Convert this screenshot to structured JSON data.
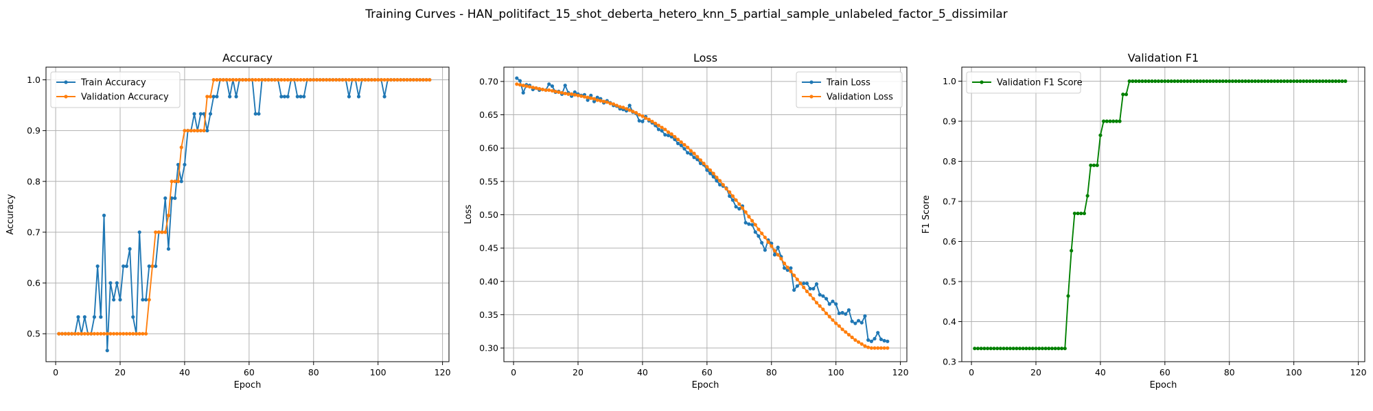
{
  "suptitle": "Training Curves - HAN_politifact_15_shot_deberta_hetero_knn_5_partial_sample_unlabeled_factor_5_dissimilar",
  "colors": {
    "train": "#1f77b4",
    "validation": "#ff7f0e",
    "f1": "#008000",
    "grid": "#b0b0b0",
    "frame": "#000000"
  },
  "chart_data": [
    {
      "type": "line",
      "title": "Accuracy",
      "xlabel": "Epoch",
      "ylabel": "Accuracy",
      "xlim": [
        -3,
        122
      ],
      "ylim": [
        0.445,
        1.025
      ],
      "xticks": [
        0,
        20,
        40,
        60,
        80,
        100,
        120
      ],
      "yticks": [
        0.5,
        0.6,
        0.7,
        0.8,
        0.9,
        1.0
      ],
      "ytick_labels": [
        "0.5",
        "0.6",
        "0.7",
        "0.8",
        "0.9",
        "1.0"
      ],
      "grid": true,
      "legend_position": "upper-left",
      "x_start": 1,
      "series": [
        {
          "name": "Train Accuracy",
          "color": "#1f77b4",
          "values": [
            0.5,
            0.5,
            0.5,
            0.5,
            0.5,
            0.5,
            0.533,
            0.5,
            0.533,
            0.5,
            0.5,
            0.533,
            0.633,
            0.533,
            0.733,
            0.467,
            0.6,
            0.567,
            0.6,
            0.567,
            0.633,
            0.633,
            0.667,
            0.533,
            0.5,
            0.7,
            0.567,
            0.567,
            0.633,
            0.633,
            0.633,
            0.7,
            0.7,
            0.767,
            0.667,
            0.767,
            0.767,
            0.833,
            0.8,
            0.833,
            0.9,
            0.9,
            0.933,
            0.9,
            0.933,
            0.933,
            0.9,
            0.933,
            0.967,
            0.967,
            1.0,
            1.0,
            1.0,
            0.967,
            1.0,
            0.967,
            1.0,
            1.0,
            1.0,
            1.0,
            1.0,
            0.933,
            0.933,
            1.0,
            1.0,
            1.0,
            1.0,
            1.0,
            1.0,
            0.967,
            0.967,
            0.967,
            1.0,
            1.0,
            0.967,
            0.967,
            0.967,
            1.0,
            1.0,
            1.0,
            1.0,
            1.0,
            1.0,
            1.0,
            1.0,
            1.0,
            1.0,
            1.0,
            1.0,
            1.0,
            0.967,
            1.0,
            1.0,
            0.967,
            1.0,
            1.0,
            1.0,
            1.0,
            1.0,
            1.0,
            1.0,
            0.967,
            1.0,
            1.0,
            1.0,
            1.0,
            1.0,
            1.0,
            1.0,
            1.0,
            1.0,
            1.0,
            1.0,
            1.0,
            1.0,
            1.0
          ]
        },
        {
          "name": "Validation Accuracy",
          "color": "#ff7f0e",
          "values": [
            0.5,
            0.5,
            0.5,
            0.5,
            0.5,
            0.5,
            0.5,
            0.5,
            0.5,
            0.5,
            0.5,
            0.5,
            0.5,
            0.5,
            0.5,
            0.5,
            0.5,
            0.5,
            0.5,
            0.5,
            0.5,
            0.5,
            0.5,
            0.5,
            0.5,
            0.5,
            0.5,
            0.5,
            0.567,
            0.633,
            0.7,
            0.7,
            0.7,
            0.7,
            0.733,
            0.8,
            0.8,
            0.8,
            0.867,
            0.9,
            0.9,
            0.9,
            0.9,
            0.9,
            0.9,
            0.9,
            0.967,
            0.967,
            1.0,
            1.0,
            1.0,
            1.0,
            1.0,
            1.0,
            1.0,
            1.0,
            1.0,
            1.0,
            1.0,
            1.0,
            1.0,
            1.0,
            1.0,
            1.0,
            1.0,
            1.0,
            1.0,
            1.0,
            1.0,
            1.0,
            1.0,
            1.0,
            1.0,
            1.0,
            1.0,
            1.0,
            1.0,
            1.0,
            1.0,
            1.0,
            1.0,
            1.0,
            1.0,
            1.0,
            1.0,
            1.0,
            1.0,
            1.0,
            1.0,
            1.0,
            1.0,
            1.0,
            1.0,
            1.0,
            1.0,
            1.0,
            1.0,
            1.0,
            1.0,
            1.0,
            1.0,
            1.0,
            1.0,
            1.0,
            1.0,
            1.0,
            1.0,
            1.0,
            1.0,
            1.0,
            1.0,
            1.0,
            1.0,
            1.0,
            1.0,
            1.0
          ]
        }
      ]
    },
    {
      "type": "line",
      "title": "Loss",
      "xlabel": "Epoch",
      "ylabel": "Loss",
      "xlim": [
        -3,
        122
      ],
      "ylim": [
        0.2795,
        0.7215
      ],
      "xticks": [
        0,
        20,
        40,
        60,
        80,
        100,
        120
      ],
      "yticks": [
        0.3,
        0.35,
        0.4,
        0.45,
        0.5,
        0.55,
        0.6,
        0.65,
        0.7
      ],
      "ytick_labels": [
        "0.30",
        "0.35",
        "0.40",
        "0.45",
        "0.50",
        "0.55",
        "0.60",
        "0.65",
        "0.70"
      ],
      "grid": true,
      "legend_position": "upper-right",
      "x_start": 1,
      "series": [
        {
          "name": "Train Loss",
          "color": "#1f77b4",
          "values": [
            0.705,
            0.701,
            0.683,
            0.695,
            0.694,
            0.688,
            0.69,
            0.687,
            0.688,
            0.687,
            0.696,
            0.693,
            0.684,
            0.685,
            0.681,
            0.694,
            0.683,
            0.678,
            0.684,
            0.681,
            0.679,
            0.68,
            0.672,
            0.679,
            0.67,
            0.676,
            0.674,
            0.668,
            0.671,
            0.668,
            0.664,
            0.663,
            0.659,
            0.658,
            0.656,
            0.664,
            0.654,
            0.652,
            0.641,
            0.64,
            0.647,
            0.641,
            0.638,
            0.634,
            0.628,
            0.626,
            0.62,
            0.619,
            0.617,
            0.613,
            0.607,
            0.604,
            0.599,
            0.593,
            0.591,
            0.586,
            0.583,
            0.577,
            0.575,
            0.567,
            0.562,
            0.557,
            0.551,
            0.545,
            0.543,
            0.54,
            0.528,
            0.522,
            0.512,
            0.509,
            0.513,
            0.488,
            0.486,
            0.485,
            0.474,
            0.468,
            0.458,
            0.447,
            0.462,
            0.457,
            0.44,
            0.451,
            0.437,
            0.42,
            0.417,
            0.42,
            0.387,
            0.393,
            0.397,
            0.397,
            0.397,
            0.389,
            0.389,
            0.396,
            0.38,
            0.378,
            0.374,
            0.366,
            0.37,
            0.366,
            0.352,
            0.353,
            0.351,
            0.357,
            0.34,
            0.337,
            0.341,
            0.338,
            0.348,
            0.312,
            0.31,
            0.314,
            0.323,
            0.313,
            0.311,
            0.31
          ]
        },
        {
          "name": "Validation Loss",
          "color": "#ff7f0e",
          "values": [
            0.696,
            0.695,
            0.694,
            0.693,
            0.692,
            0.691,
            0.69,
            0.689,
            0.688,
            0.687,
            0.687,
            0.686,
            0.685,
            0.684,
            0.683,
            0.682,
            0.681,
            0.681,
            0.68,
            0.679,
            0.678,
            0.677,
            0.676,
            0.675,
            0.674,
            0.672,
            0.671,
            0.67,
            0.669,
            0.667,
            0.666,
            0.664,
            0.662,
            0.661,
            0.659,
            0.657,
            0.655,
            0.653,
            0.65,
            0.648,
            0.645,
            0.643,
            0.64,
            0.637,
            0.634,
            0.631,
            0.628,
            0.624,
            0.621,
            0.617,
            0.613,
            0.609,
            0.605,
            0.601,
            0.596,
            0.592,
            0.587,
            0.582,
            0.577,
            0.572,
            0.567,
            0.562,
            0.556,
            0.551,
            0.545,
            0.539,
            0.534,
            0.528,
            0.522,
            0.516,
            0.51,
            0.504,
            0.497,
            0.491,
            0.485,
            0.478,
            0.472,
            0.466,
            0.459,
            0.453,
            0.446,
            0.44,
            0.434,
            0.427,
            0.421,
            0.415,
            0.409,
            0.403,
            0.397,
            0.391,
            0.385,
            0.38,
            0.374,
            0.368,
            0.363,
            0.358,
            0.352,
            0.347,
            0.342,
            0.337,
            0.333,
            0.328,
            0.324,
            0.32,
            0.316,
            0.312,
            0.309,
            0.306,
            0.303,
            0.301,
            0.3,
            0.3,
            0.3,
            0.3,
            0.3,
            0.3
          ]
        }
      ]
    },
    {
      "type": "line",
      "title": "Validation F1",
      "xlabel": "Epoch",
      "ylabel": "F1 Score",
      "xlim": [
        -3,
        122
      ],
      "ylim": [
        0.3,
        1.035
      ],
      "xticks": [
        0,
        20,
        40,
        60,
        80,
        100,
        120
      ],
      "yticks": [
        0.3,
        0.4,
        0.5,
        0.6,
        0.7,
        0.8,
        0.9,
        1.0
      ],
      "ytick_labels": [
        "0.3",
        "0.4",
        "0.5",
        "0.6",
        "0.7",
        "0.8",
        "0.9",
        "1.0"
      ],
      "grid": true,
      "legend_position": "upper-left",
      "x_start": 1,
      "series": [
        {
          "name": "Validation F1 Score",
          "color": "#008000",
          "values": [
            0.333,
            0.333,
            0.333,
            0.333,
            0.333,
            0.333,
            0.333,
            0.333,
            0.333,
            0.333,
            0.333,
            0.333,
            0.333,
            0.333,
            0.333,
            0.333,
            0.333,
            0.333,
            0.333,
            0.333,
            0.333,
            0.333,
            0.333,
            0.333,
            0.333,
            0.333,
            0.333,
            0.333,
            0.333,
            0.464,
            0.577,
            0.67,
            0.67,
            0.67,
            0.67,
            0.714,
            0.79,
            0.79,
            0.79,
            0.865,
            0.9,
            0.9,
            0.9,
            0.9,
            0.9,
            0.9,
            0.967,
            0.967,
            1.0,
            1.0,
            1.0,
            1.0,
            1.0,
            1.0,
            1.0,
            1.0,
            1.0,
            1.0,
            1.0,
            1.0,
            1.0,
            1.0,
            1.0,
            1.0,
            1.0,
            1.0,
            1.0,
            1.0,
            1.0,
            1.0,
            1.0,
            1.0,
            1.0,
            1.0,
            1.0,
            1.0,
            1.0,
            1.0,
            1.0,
            1.0,
            1.0,
            1.0,
            1.0,
            1.0,
            1.0,
            1.0,
            1.0,
            1.0,
            1.0,
            1.0,
            1.0,
            1.0,
            1.0,
            1.0,
            1.0,
            1.0,
            1.0,
            1.0,
            1.0,
            1.0,
            1.0,
            1.0,
            1.0,
            1.0,
            1.0,
            1.0,
            1.0,
            1.0,
            1.0,
            1.0,
            1.0,
            1.0,
            1.0,
            1.0,
            1.0,
            1.0
          ]
        }
      ]
    }
  ]
}
